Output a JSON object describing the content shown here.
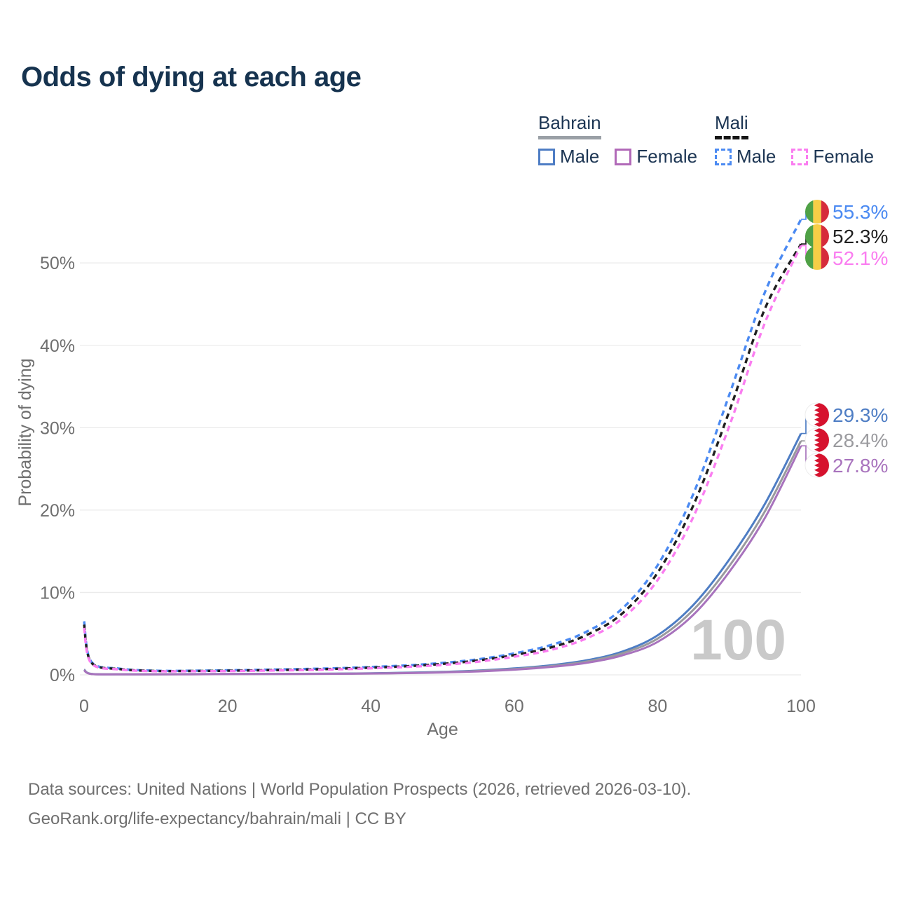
{
  "title": "Odds of dying at each age",
  "legend": {
    "groups": [
      {
        "country": "Bahrain",
        "underline": "solid",
        "underline_color": "#9aa0a6",
        "items": [
          {
            "label": "Male",
            "color": "#4e7dc4",
            "dash": false
          },
          {
            "label": "Female",
            "color": "#b169b8",
            "dash": false
          }
        ]
      },
      {
        "country": "Mali",
        "underline": "dashed",
        "underline_color": "#161616",
        "items": [
          {
            "label": "Male",
            "color": "#4b8af2",
            "dash": true
          },
          {
            "label": "Female",
            "color": "#fa7df0",
            "dash": true
          }
        ]
      }
    ]
  },
  "watermark": "100",
  "footer": {
    "line1": "Data sources: United Nations | World Population Prospects (2026, retrieved 2026-03-10).",
    "line2": "GeoRank.org/life-expectancy/bahrain/mali | CC BY"
  },
  "chart_data": {
    "type": "line",
    "title": "Odds of dying at each age",
    "xlabel": "Age",
    "ylabel": "Probability of dying",
    "xlim": [
      0,
      100
    ],
    "ylim_percent": [
      0,
      57
    ],
    "x_ticks": [
      0,
      20,
      40,
      60,
      80,
      100
    ],
    "y_tick_labels": [
      "0%",
      "10%",
      "20%",
      "30%",
      "40%",
      "50%"
    ],
    "y_tick_values": [
      0,
      10,
      20,
      30,
      40,
      50
    ],
    "grid": true,
    "legend_position": "top-right",
    "ages": [
      0,
      1,
      5,
      10,
      15,
      20,
      25,
      30,
      35,
      40,
      45,
      50,
      55,
      60,
      65,
      70,
      75,
      80,
      85,
      90,
      95,
      100
    ],
    "series": [
      {
        "name": "Mali Male",
        "country": "Mali",
        "sex": "Male",
        "color": "#4b8af2",
        "dash": true,
        "end_label": "55.3%",
        "end_value": 55.3,
        "flag": "mali",
        "values": [
          6.5,
          1.6,
          0.75,
          0.5,
          0.5,
          0.55,
          0.62,
          0.7,
          0.8,
          0.95,
          1.15,
          1.45,
          1.9,
          2.6,
          3.6,
          5.2,
          8.0,
          13.3,
          22.0,
          34.0,
          46.5,
          55.3
        ]
      },
      {
        "name": "Mali Both sexes",
        "country": "Mali",
        "sex": "Both",
        "color": "#1f1f1f",
        "dash": true,
        "end_label": "52.3%",
        "end_value": 52.3,
        "flag": "mali",
        "values": [
          6.1,
          1.5,
          0.7,
          0.47,
          0.47,
          0.5,
          0.56,
          0.63,
          0.73,
          0.87,
          1.05,
          1.33,
          1.75,
          2.4,
          3.3,
          4.8,
          7.4,
          12.4,
          20.6,
          32.0,
          44.5,
          52.3
        ]
      },
      {
        "name": "Mali Female",
        "country": "Mali",
        "sex": "Female",
        "color": "#fa7df0",
        "dash": true,
        "end_label": "52.1%",
        "end_value": 52.1,
        "flag": "mali",
        "values": [
          5.7,
          1.4,
          0.65,
          0.44,
          0.44,
          0.46,
          0.51,
          0.57,
          0.66,
          0.79,
          0.96,
          1.2,
          1.6,
          2.2,
          3.0,
          4.4,
          6.8,
          11.5,
          19.2,
          30.2,
          42.8,
          52.1
        ]
      },
      {
        "name": "Bahrain Male",
        "country": "Bahrain",
        "sex": "Male",
        "color": "#4e7dc4",
        "dash": false,
        "end_label": "29.3%",
        "end_value": 29.3,
        "flag": "bahrain",
        "values": [
          0.65,
          0.12,
          0.07,
          0.07,
          0.09,
          0.11,
          0.12,
          0.13,
          0.15,
          0.19,
          0.26,
          0.36,
          0.52,
          0.78,
          1.15,
          1.75,
          2.8,
          4.8,
          8.5,
          14.0,
          20.8,
          29.3
        ]
      },
      {
        "name": "Bahrain Both sexes",
        "country": "Bahrain",
        "sex": "Both",
        "color": "#9a9a9e",
        "dash": false,
        "end_label": "28.4%",
        "end_value": 28.4,
        "flag": "bahrain",
        "values": [
          0.6,
          0.11,
          0.065,
          0.065,
          0.08,
          0.1,
          0.11,
          0.12,
          0.14,
          0.17,
          0.23,
          0.32,
          0.47,
          0.7,
          1.05,
          1.6,
          2.6,
          4.4,
          7.9,
          13.2,
          19.9,
          28.4
        ]
      },
      {
        "name": "Bahrain Female",
        "country": "Bahrain",
        "sex": "Female",
        "color": "#a873bd",
        "dash": false,
        "end_label": "27.8%",
        "end_value": 27.8,
        "flag": "bahrain",
        "values": [
          0.55,
          0.1,
          0.06,
          0.06,
          0.07,
          0.09,
          0.1,
          0.11,
          0.13,
          0.16,
          0.21,
          0.29,
          0.42,
          0.63,
          0.95,
          1.45,
          2.35,
          4.0,
          7.3,
          12.5,
          19.1,
          27.8
        ]
      }
    ],
    "flag_colors": {
      "mali": {
        "green": "#4fa146",
        "yellow": "#f6ce46",
        "red": "#d62c3b"
      },
      "bahrain": {
        "white": "#ffffff",
        "red": "#d6122e"
      }
    },
    "watermark_age": "100"
  }
}
